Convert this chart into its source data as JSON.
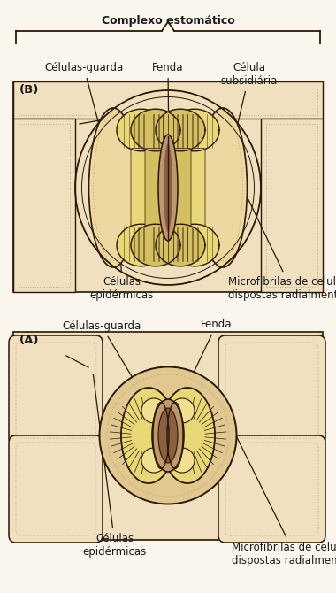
{
  "bg_color": "#FAF6EE",
  "panel_bg": "#F0E0C0",
  "epi_cell_bg": "#F0E0C0",
  "guard_yellow": "#E8D878",
  "guard_yellow2": "#D4C060",
  "fenda_brown": "#C09870",
  "fenda_dark": "#8B6040",
  "ring_bg": "#E0C890",
  "sub_cell_bg": "#ECD8A0",
  "line_col": "#2A1800",
  "dot_col": "#C8A878",
  "ann_col": "#1A1A1A",
  "label_A": "(A)",
  "label_B": "(B)",
  "txt_celulas_epid": "Células\nepidérmicas",
  "txt_microfibrilas": "Microfibrilas de celulose\ndispostas radialmente",
  "txt_guarda_A": "Células-guarda",
  "txt_fenda_A": "Fenda",
  "txt_celulas_epid_B": "Células\nepidérmicas",
  "txt_microfibrilas_B": "Microfibrilas de celulose\ndispostas radialmente",
  "txt_guarda_B": "Células-guarda",
  "txt_fenda_B": "Fenda",
  "txt_subsidiaria": "Célula\nsubsidiária",
  "txt_complexo": "Complexo estomático",
  "fs": 8.5,
  "fs_panel": 9.5
}
